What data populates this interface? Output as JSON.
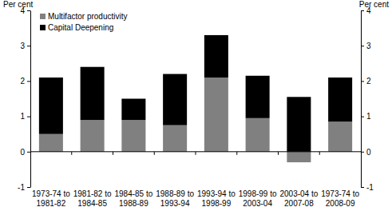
{
  "chart_data": {
    "type": "bar",
    "stacked": true,
    "legend": "top-left",
    "y_label": "Per cent",
    "y2_label": "Per cent",
    "categories": [
      "1973-74 to 1981-82",
      "1981-82 to 1984-85",
      "1984-85 to 1988-89",
      "1988-89 to 1993-94",
      "1993-94 to 1998-99",
      "1998-99 to 2003-04",
      "2003-04 to 2007-08",
      "1973-74 to 2008-09"
    ],
    "series": [
      {
        "name": "Multifactor productivity",
        "color": "#808080",
        "values": [
          0.5,
          0.9,
          0.9,
          0.75,
          2.1,
          0.95,
          -0.3,
          0.85
        ]
      },
      {
        "name": "Capital Deepening",
        "color": "#000000",
        "values": [
          1.6,
          1.5,
          0.6,
          1.45,
          1.2,
          1.2,
          1.55,
          1.25
        ]
      }
    ],
    "ylim": [
      -1,
      4
    ],
    "yticks": [
      -1,
      0,
      1,
      2,
      3,
      4
    ]
  }
}
